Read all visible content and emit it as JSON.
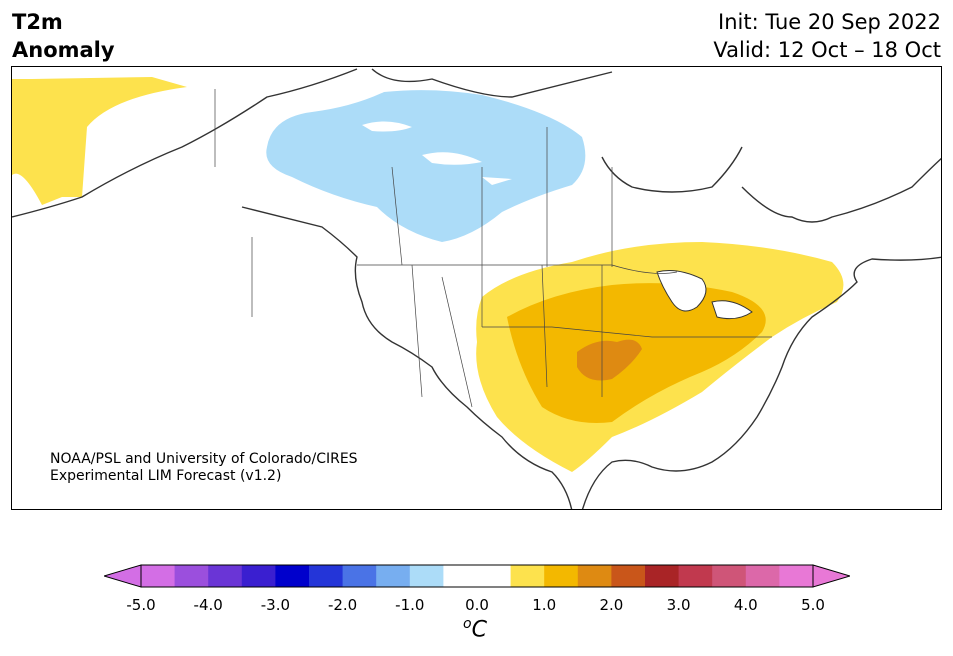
{
  "title": {
    "variable": "T2m",
    "subtitle": "Anomaly",
    "init": "Init: Tue 20 Sep 2022",
    "valid": "Valid: 12 Oct – 18 Oct"
  },
  "credit": {
    "line1": "NOAA/PSL and University of Colorado/CIRES",
    "line2": "Experimental LIM Forecast (v1.2)"
  },
  "colorbar": {
    "unit_base": "C",
    "unit_sup": "o",
    "ticks": [
      "-5.0",
      "-4.0",
      "-3.0",
      "-2.0",
      "-1.0",
      "0.0",
      "1.0",
      "2.0",
      "3.0",
      "4.0",
      "5.0"
    ],
    "bounds": [
      -5.0,
      5.0
    ],
    "colors": [
      "#d36ee5",
      "#9b4fdd",
      "#6a35d6",
      "#3a1fd0",
      "#0000cc",
      "#2435d8",
      "#4a73e6",
      "#77aef0",
      "#acdcf8",
      "#ffffff",
      "#ffffff",
      "#fde24d",
      "#f3b800",
      "#de8a12",
      "#c9561a",
      "#a92426",
      "#c1394e",
      "#cf5578",
      "#dc68a9",
      "#e878d6"
    ]
  },
  "map": {
    "region": "North America",
    "anomaly_levels": [
      "-1.0 to -0.5 light blue",
      "0.5 to 1.0 yellow",
      "1.0 to 1.5 gold",
      "1.5 to 2.0 orange"
    ]
  }
}
